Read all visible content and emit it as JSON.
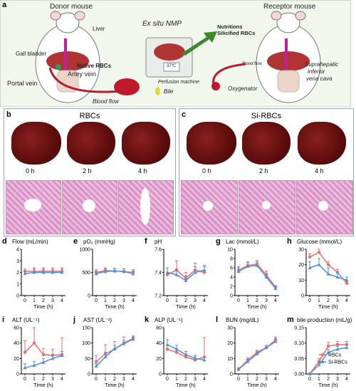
{
  "panel_a": {
    "letter": "a",
    "donor_title": "Donor mouse",
    "exsitu_title": "Ex situ NMP",
    "receptor_title": "Receptor mouse",
    "labels": {
      "liver": "Liver",
      "gall_bladder": "Gall bladder",
      "native_rbcs": "Native RBCs",
      "portal_vein": "Portal vein",
      "artey_vein": "Artey vein",
      "blood_flow_1": "Blood flow",
      "perfusion_machine": "Perfusion machine",
      "bile": "Bile",
      "temp": "37℃",
      "nutritions": "Nutritions",
      "silicified_rbcs": "Silicified RBCs",
      "blood_flow_2": "Blood flow",
      "oxygenator": "Oxygenator",
      "suprahepatic": "Suprahepatic",
      "inferior": "inferior",
      "vena_cava": "vena cava"
    }
  },
  "panel_b": {
    "letter": "b",
    "title": "RBCs",
    "times": [
      "0 h",
      "2 h",
      "4 h"
    ]
  },
  "panel_c": {
    "letter": "c",
    "title": "Si-RBCs",
    "times": [
      "0 h",
      "2 h",
      "4 h"
    ]
  },
  "colors": {
    "rbcs": "#f26b6b",
    "si_rbcs": "#4a90e2"
  },
  "legend": {
    "rbcs": "RBCs",
    "si_rbcs": "Si-RBCs"
  },
  "chart_data": [
    {
      "letter": "d",
      "title": "Flow (mL/min)",
      "type": "line",
      "xlabel": "Time (h)",
      "x": [
        0,
        1,
        2,
        3,
        4
      ],
      "ylim": [
        0,
        4
      ],
      "yticks": [
        "0",
        "1",
        "2",
        "3",
        "4"
      ],
      "series": [
        {
          "name": "RBCs",
          "values": [
            2.1,
            2.1,
            2.1,
            2.1,
            2.1
          ],
          "err": [
            0.2,
            0.3,
            0.3,
            0.3,
            0.3
          ]
        },
        {
          "name": "Si-RBCs",
          "values": [
            1.9,
            2.0,
            2.0,
            2.0,
            2.0
          ],
          "err": [
            0.2,
            0.3,
            0.3,
            0.3,
            0.3
          ]
        }
      ]
    },
    {
      "letter": "e",
      "title": "pO₂ (mmHg)",
      "type": "line",
      "xlabel": "Time (h)",
      "x": [
        0,
        1,
        2,
        3,
        4
      ],
      "ylim": [
        0,
        1000
      ],
      "yticks": [
        "0",
        "500",
        "1000"
      ],
      "series": [
        {
          "name": "RBCs",
          "values": [
            500,
            540,
            530,
            520,
            500
          ],
          "err": [
            60,
            60,
            60,
            60,
            60
          ]
        },
        {
          "name": "Si-RBCs",
          "values": [
            470,
            520,
            530,
            520,
            470
          ],
          "err": [
            60,
            60,
            60,
            60,
            60
          ]
        }
      ]
    },
    {
      "letter": "f",
      "title": "pH",
      "type": "line",
      "xlabel": "Time (h)",
      "x": [
        0,
        1,
        2,
        3,
        4
      ],
      "ylim": [
        7.2,
        7.6
      ],
      "yticks": [
        "7.2",
        "7.4",
        "7.6"
      ],
      "series": [
        {
          "name": "RBCs",
          "values": [
            7.38,
            7.42,
            7.35,
            7.42,
            7.4
          ],
          "err": [
            0.06,
            0.08,
            0.05,
            0.06,
            0.05
          ]
        },
        {
          "name": "Si-RBCs",
          "values": [
            7.4,
            7.38,
            7.33,
            7.4,
            7.42
          ],
          "err": [
            0.04,
            0.05,
            0.04,
            0.05,
            0.04
          ]
        }
      ]
    },
    {
      "letter": "g",
      "title": "Lac (mmol/L)",
      "type": "line",
      "xlabel": "Time (h)",
      "x": [
        0,
        1,
        2,
        3,
        4
      ],
      "ylim": [
        0,
        10
      ],
      "yticks": [
        "0",
        "2",
        "4",
        "6",
        "8",
        "10"
      ],
      "series": [
        {
          "name": "RBCs",
          "values": [
            5.5,
            6.5,
            6.8,
            4.5,
            1.8
          ],
          "err": [
            0.8,
            0.8,
            0.8,
            0.8,
            0.4
          ]
        },
        {
          "name": "Si-RBCs",
          "values": [
            5.2,
            6.3,
            6.5,
            4.0,
            1.5
          ],
          "err": [
            0.8,
            0.8,
            0.8,
            0.8,
            0.4
          ]
        }
      ]
    },
    {
      "letter": "h",
      "title": "Glucose (mmol/L)",
      "type": "line",
      "xlabel": "Time (h)",
      "x": [
        0,
        1,
        2,
        3,
        4
      ],
      "ylim": [
        0,
        30
      ],
      "yticks": [
        "0",
        "10",
        "20",
        "30"
      ],
      "series": [
        {
          "name": "RBCs",
          "values": [
            25,
            28,
            20,
            15,
            8
          ],
          "err": [
            2,
            2,
            2,
            2,
            2
          ]
        },
        {
          "name": "Si-RBCs",
          "values": [
            18,
            20,
            14,
            12,
            10
          ],
          "err": [
            4,
            4,
            4,
            3,
            2
          ]
        }
      ]
    },
    {
      "letter": "i",
      "title": "ALT (UL⁻¹)",
      "type": "line",
      "xlabel": "Time (h)",
      "x": [
        0,
        1,
        2,
        3,
        4
      ],
      "ylim": [
        0,
        60
      ],
      "yticks": [
        "0",
        "20",
        "40",
        "60"
      ],
      "series": [
        {
          "name": "RBCs",
          "values": [
            28,
            40,
            25,
            24,
            25
          ],
          "err": [
            15,
            22,
            8,
            8,
            22
          ]
        },
        {
          "name": "Si-RBCs",
          "values": [
            8,
            11,
            15,
            20,
            24
          ],
          "err": [
            5,
            5,
            5,
            5,
            5
          ]
        }
      ]
    },
    {
      "letter": "j",
      "title": "AST (UL⁻¹)",
      "type": "line",
      "xlabel": "Time (h)",
      "x": [
        0,
        1,
        2,
        3,
        4
      ],
      "ylim": [
        0,
        150
      ],
      "yticks": [
        "0",
        "50",
        "100",
        "150"
      ],
      "series": [
        {
          "name": "RBCs",
          "values": [
            40,
            65,
            80,
            100,
            115
          ],
          "err": [
            20,
            30,
            25,
            20,
            8
          ]
        },
        {
          "name": "Si-RBCs",
          "values": [
            25,
            55,
            82,
            98,
            112
          ],
          "err": [
            8,
            15,
            10,
            10,
            8
          ]
        }
      ]
    },
    {
      "letter": "k",
      "title": "ALP (UL⁻¹)",
      "type": "line",
      "xlabel": "Time (h)",
      "x": [
        0,
        1,
        2,
        3,
        4
      ],
      "ylim": [
        0,
        60
      ],
      "yticks": [
        "0",
        "20",
        "40",
        "60"
      ],
      "series": [
        {
          "name": "RBCs",
          "values": [
            32,
            28,
            22,
            18,
            22
          ],
          "err": [
            5,
            5,
            4,
            4,
            25
          ]
        },
        {
          "name": "Si-RBCs",
          "values": [
            38,
            32,
            25,
            20,
            18
          ],
          "err": [
            6,
            5,
            4,
            4,
            3
          ]
        }
      ]
    },
    {
      "letter": "l",
      "title": "BUN  (mg/dL)",
      "type": "line",
      "xlabel": "Time (h)",
      "x": [
        0,
        1,
        2,
        3,
        4
      ],
      "ylim": [
        0,
        30
      ],
      "yticks": [
        "0",
        "10",
        "20",
        "30"
      ],
      "series": [
        {
          "name": "RBCs",
          "values": [
            3,
            9,
            14,
            17,
            22
          ],
          "err": [
            1,
            1.5,
            1.5,
            1.5,
            2
          ]
        },
        {
          "name": "Si-RBCs",
          "values": [
            3,
            8,
            13,
            17,
            21
          ],
          "err": [
            1,
            1.5,
            1.5,
            1.5,
            2
          ]
        }
      ]
    },
    {
      "letter": "m",
      "title": "bile production  (mL/g)",
      "type": "line",
      "xlabel": "Time (h)",
      "x": [
        0,
        1,
        2,
        3,
        4
      ],
      "ylim": [
        0,
        0.15
      ],
      "yticks": [
        "0.00",
        "0.05",
        "0.10",
        "0.15"
      ],
      "series": [
        {
          "name": "RBCs",
          "values": [
            0.0,
            0.04,
            0.09,
            0.095,
            0.095
          ],
          "err": [
            0.003,
            0.01,
            0.012,
            0.01,
            0.01
          ]
        },
        {
          "name": "Si-RBCs",
          "values": [
            0.0,
            0.03,
            0.07,
            0.08,
            0.085
          ],
          "err": [
            0.003,
            0.01,
            0.01,
            0.01,
            0.01
          ]
        }
      ]
    }
  ]
}
